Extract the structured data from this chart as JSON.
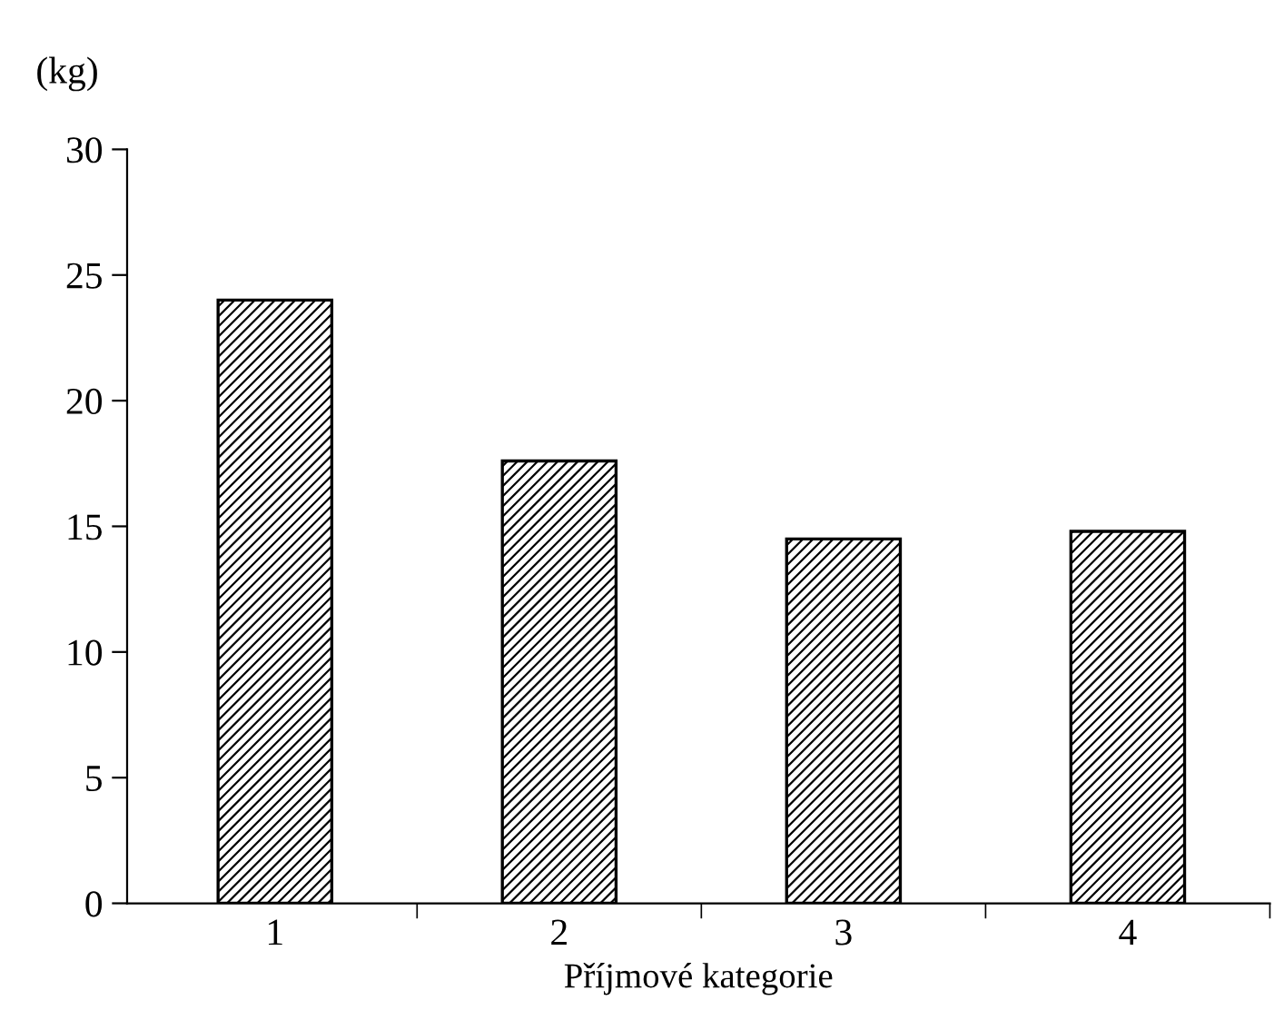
{
  "chart_data": {
    "type": "bar",
    "ylabel": "(kg)",
    "xlabel": "Příjmové kategorie",
    "categories": [
      "1",
      "2",
      "3",
      "4"
    ],
    "values": [
      24.0,
      17.6,
      14.5,
      14.8
    ],
    "color": "#000000",
    "ylim": [
      0,
      30
    ],
    "yticks": [
      0,
      5,
      10,
      15,
      20,
      25,
      30
    ],
    "grid": false
  }
}
